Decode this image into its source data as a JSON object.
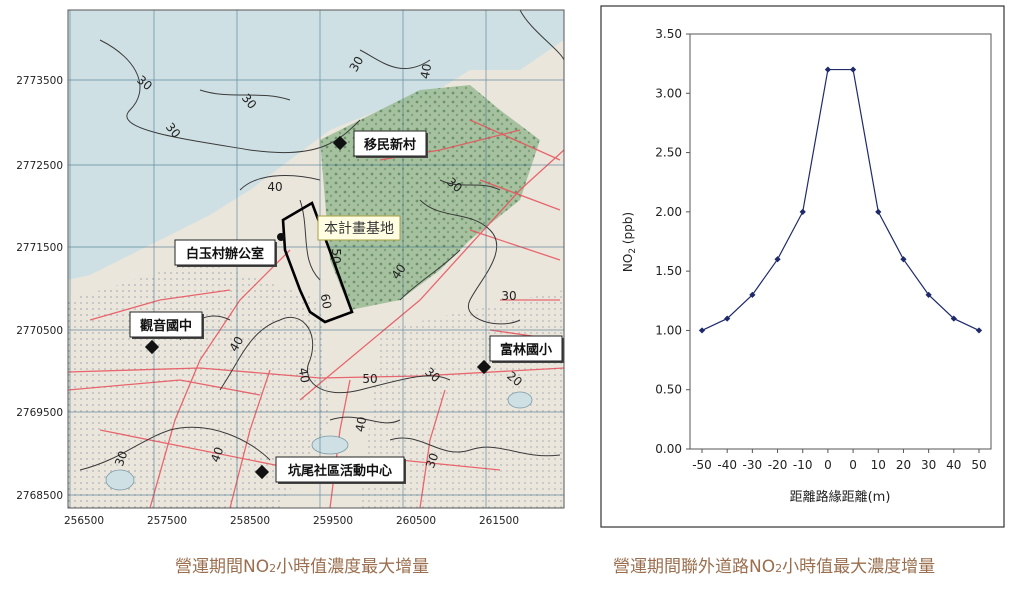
{
  "map": {
    "site_label": "本計畫基地",
    "places": [
      "移民新村",
      "白玉村辦公室",
      "觀音國中",
      "富林國小",
      "坑尾社區活動中心"
    ],
    "y_ticks": [
      "2773500",
      "2772500",
      "2771500",
      "2770500",
      "2769500",
      "2768500"
    ],
    "x_ticks": [
      "256500",
      "257500",
      "258500",
      "259500",
      "260500",
      "261500"
    ],
    "contours": [
      "30",
      "30",
      "30",
      "30",
      "40",
      "30",
      "50",
      "60",
      "40",
      "30",
      "40",
      "40",
      "50",
      "40",
      "30",
      "20",
      "40",
      "30",
      "30",
      "40"
    ],
    "colors": {
      "sea": "#cfe0e4",
      "land": "#ece7df",
      "forest": "#8cb08a",
      "road": "#e8505a",
      "contour": "#404040"
    }
  },
  "chart_data": {
    "type": "line",
    "x_ticks": [
      "-50",
      "-40",
      "-30",
      "-20",
      "-10",
      "0",
      "0",
      "10",
      "20",
      "30",
      "40",
      "50"
    ],
    "values": [
      1.0,
      1.1,
      1.3,
      1.6,
      2.0,
      3.2,
      3.2,
      2.0,
      1.6,
      1.3,
      1.1,
      1.0
    ],
    "y_ticks": [
      "0.00",
      "0.50",
      "1.00",
      "1.50",
      "2.00",
      "2.50",
      "3.00",
      "3.50"
    ],
    "ylim": [
      0,
      3.5
    ],
    "xlabel": "距離路緣距離(m)",
    "ylabel": "NO2 (ppb)",
    "ylabel_main": "NO",
    "ylabel_sub": "2",
    "ylabel_rest": " (ppb)",
    "line_color": "#1f2a6b"
  },
  "captions": {
    "left_pre": "營運期間NO",
    "left_sub": "2",
    "left_post": "小時值濃度最大增量",
    "right_pre": "營運期間聯外道路NO",
    "right_sub": "2",
    "right_post": "小時值最大濃度增量"
  }
}
